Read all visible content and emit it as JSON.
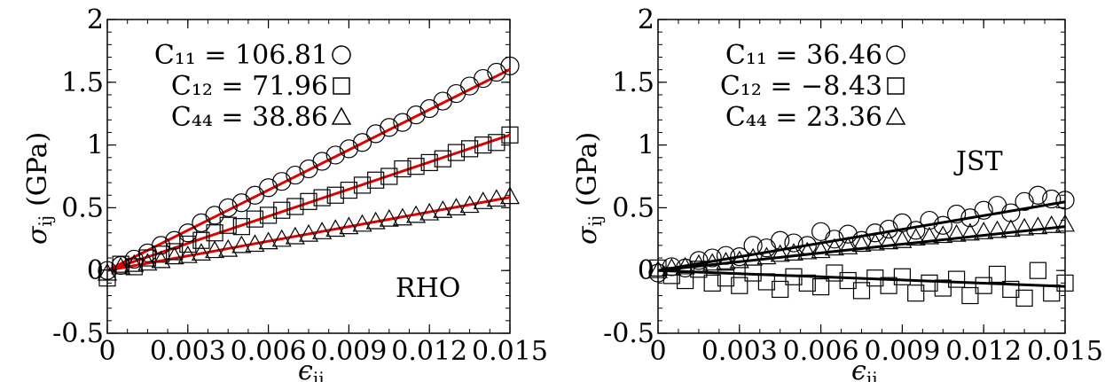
{
  "chart_data": [
    {
      "type": "scatter",
      "panel": "left",
      "annotation": "RHO",
      "xlabel_symbol": "ϵ",
      "xlabel_sub": "ij",
      "ylabel_symbol": "σ",
      "ylabel_sub": "ij",
      "ylabel_unit": "(GPa)",
      "xlim": [
        0,
        0.015
      ],
      "ylim": [
        -0.5,
        2
      ],
      "xticks": [
        "0",
        "0.003",
        "0.006",
        "0.009",
        "0.012",
        "0.015"
      ],
      "yticks": [
        "-0.5",
        "0",
        "0.5",
        "1",
        "1.5",
        "2"
      ],
      "fit_color": "#e00000",
      "series": [
        {
          "name": "C11",
          "legend_text": "C₁₁ = 106.81",
          "marker": "circle",
          "x": [
            0,
            0.0005,
            0.001,
            0.0015,
            0.002,
            0.0025,
            0.003,
            0.0035,
            0.004,
            0.0045,
            0.005,
            0.0055,
            0.006,
            0.0065,
            0.007,
            0.0075,
            0.008,
            0.0085,
            0.009,
            0.0095,
            0.01,
            0.0105,
            0.011,
            0.0115,
            0.012,
            0.0125,
            0.013,
            0.0135,
            0.014,
            0.0145,
            0.015
          ],
          "y": [
            0.0,
            0.04,
            0.09,
            0.14,
            0.2,
            0.24,
            0.3,
            0.38,
            0.44,
            0.5,
            0.54,
            0.6,
            0.66,
            0.71,
            0.76,
            0.81,
            0.87,
            0.92,
            0.97,
            1.02,
            1.09,
            1.14,
            1.18,
            1.24,
            1.29,
            1.35,
            1.41,
            1.47,
            1.53,
            1.58,
            1.63
          ],
          "fit_slope": 106.81
        },
        {
          "name": "C12",
          "legend_text": "C₁₂ = 71.96",
          "marker": "square",
          "x": [
            0,
            0.0005,
            0.001,
            0.0015,
            0.002,
            0.0025,
            0.003,
            0.0035,
            0.004,
            0.0045,
            0.005,
            0.0055,
            0.006,
            0.0065,
            0.007,
            0.0075,
            0.008,
            0.0085,
            0.009,
            0.0095,
            0.01,
            0.0105,
            0.011,
            0.0115,
            0.012,
            0.0125,
            0.013,
            0.0135,
            0.014,
            0.0145,
            0.015
          ],
          "y": [
            -0.06,
            0.05,
            0.03,
            0.1,
            0.13,
            0.15,
            0.21,
            0.24,
            0.3,
            0.36,
            0.35,
            0.41,
            0.44,
            0.48,
            0.51,
            0.55,
            0.58,
            0.6,
            0.64,
            0.68,
            0.72,
            0.75,
            0.81,
            0.83,
            0.86,
            0.89,
            0.94,
            0.97,
            1.0,
            1.02,
            1.08
          ],
          "fit_slope": 71.96
        },
        {
          "name": "C44",
          "legend_text": "C₄₄ = 38.86",
          "marker": "triangle",
          "x": [
            0,
            0.0005,
            0.001,
            0.0015,
            0.002,
            0.0025,
            0.003,
            0.0035,
            0.004,
            0.0045,
            0.005,
            0.0055,
            0.006,
            0.0065,
            0.007,
            0.0075,
            0.008,
            0.0085,
            0.009,
            0.0095,
            0.01,
            0.0105,
            0.011,
            0.0115,
            0.012,
            0.0125,
            0.013,
            0.0135,
            0.014,
            0.0145,
            0.015
          ],
          "y": [
            -0.02,
            0.03,
            0.05,
            0.06,
            0.08,
            0.11,
            0.12,
            0.14,
            0.16,
            0.17,
            0.2,
            0.21,
            0.23,
            0.25,
            0.27,
            0.29,
            0.31,
            0.33,
            0.35,
            0.37,
            0.39,
            0.41,
            0.42,
            0.44,
            0.46,
            0.48,
            0.5,
            0.52,
            0.55,
            0.57,
            0.59
          ],
          "fit_slope": 38.86
        }
      ]
    },
    {
      "type": "scatter",
      "panel": "right",
      "annotation": "JST",
      "xlabel_symbol": "ϵ",
      "xlabel_sub": "ij",
      "ylabel_symbol": "σ",
      "ylabel_sub": "ij",
      "ylabel_unit": "(GPa)",
      "xlim": [
        0,
        0.015
      ],
      "ylim": [
        -0.5,
        2
      ],
      "xticks": [
        "0",
        "0.003",
        "0.006",
        "0.009",
        "0.012",
        "0.015"
      ],
      "yticks": [
        "-0.5",
        "0",
        "0.5",
        "1",
        "1.5",
        "2"
      ],
      "fit_color": "#000000",
      "series": [
        {
          "name": "C11",
          "legend_text": "C₁₁ = 36.46",
          "marker": "circle",
          "x": [
            0,
            0.0005,
            0.001,
            0.0015,
            0.002,
            0.0025,
            0.003,
            0.0035,
            0.004,
            0.0045,
            0.005,
            0.0055,
            0.006,
            0.0065,
            0.007,
            0.0075,
            0.008,
            0.0085,
            0.009,
            0.0095,
            0.01,
            0.0105,
            0.011,
            0.0115,
            0.012,
            0.0125,
            0.013,
            0.0135,
            0.014,
            0.0145,
            0.015
          ],
          "y": [
            -0.02,
            0.03,
            0.02,
            0.08,
            0.1,
            0.12,
            0.11,
            0.2,
            0.18,
            0.24,
            0.22,
            0.2,
            0.31,
            0.25,
            0.29,
            0.24,
            0.3,
            0.33,
            0.38,
            0.32,
            0.4,
            0.36,
            0.45,
            0.42,
            0.48,
            0.52,
            0.46,
            0.55,
            0.6,
            0.57,
            0.56
          ],
          "fit_slope": 36.46
        },
        {
          "name": "C12",
          "legend_text": "C₁₂ = −8.43",
          "marker": "square",
          "x": [
            0,
            0.0005,
            0.001,
            0.0015,
            0.002,
            0.0025,
            0.003,
            0.0035,
            0.004,
            0.0045,
            0.005,
            0.0055,
            0.006,
            0.0065,
            0.007,
            0.0075,
            0.008,
            0.0085,
            0.009,
            0.0095,
            0.01,
            0.0105,
            0.011,
            0.0115,
            0.012,
            0.0125,
            0.013,
            0.0135,
            0.014,
            0.0145,
            0.015
          ],
          "y": [
            0.02,
            -0.04,
            -0.08,
            0.01,
            -0.1,
            -0.06,
            -0.12,
            -0.02,
            -0.09,
            -0.15,
            -0.05,
            -0.1,
            -0.13,
            -0.02,
            -0.08,
            -0.16,
            -0.06,
            -0.12,
            -0.05,
            -0.18,
            -0.1,
            -0.14,
            -0.07,
            -0.2,
            -0.12,
            -0.03,
            -0.15,
            -0.22,
            0.0,
            -0.18,
            -0.1
          ],
          "fit_slope": -8.43
        },
        {
          "name": "C44",
          "legend_text": "C₄₄ = 23.36",
          "marker": "triangle",
          "x": [
            0,
            0.0005,
            0.001,
            0.0015,
            0.002,
            0.0025,
            0.003,
            0.0035,
            0.004,
            0.0045,
            0.005,
            0.0055,
            0.006,
            0.0065,
            0.007,
            0.0075,
            0.008,
            0.0085,
            0.009,
            0.0095,
            0.01,
            0.0105,
            0.011,
            0.0115,
            0.012,
            0.0125,
            0.013,
            0.0135,
            0.014,
            0.0145,
            0.015
          ],
          "y": [
            0.0,
            0.02,
            0.03,
            0.05,
            0.06,
            0.07,
            0.08,
            0.1,
            0.11,
            0.13,
            0.14,
            0.15,
            0.16,
            0.18,
            0.19,
            0.21,
            0.22,
            0.23,
            0.24,
            0.26,
            0.27,
            0.28,
            0.29,
            0.3,
            0.31,
            0.32,
            0.33,
            0.34,
            0.35,
            0.36,
            0.37
          ],
          "fit_slope": 23.36
        }
      ]
    }
  ]
}
